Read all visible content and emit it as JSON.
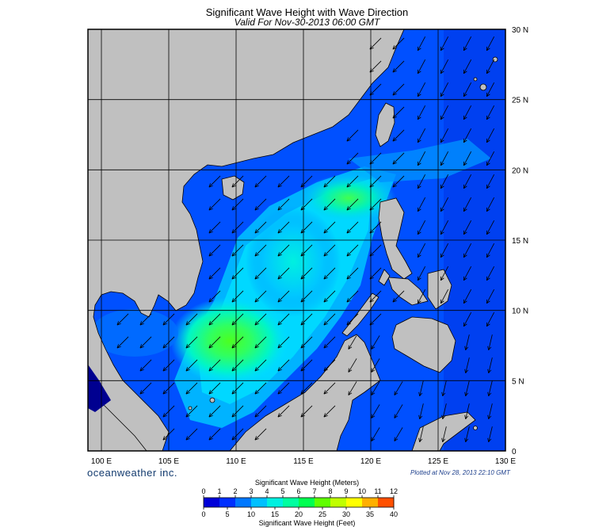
{
  "title": "Significant Wave Height with Wave Direction",
  "subtitle": "Valid For Nov-30-2013 06:00 GMT",
  "brand": "oceanweather inc.",
  "plotted": "Plotted at Nov 28, 2013 22:10 GMT",
  "lon_labels": [
    "100 E",
    "105 E",
    "110 E",
    "115 E",
    "120 E",
    "125 E",
    "130 E"
  ],
  "lat_labels": [
    "30 N",
    "25 N",
    "20 N",
    "15 N",
    "10 N",
    "5 N",
    "0"
  ],
  "colorbar": {
    "meters_title": "Significant Wave Height (Meters)",
    "feet_title": "Significant Wave Height (Feet)",
    "meters_ticks": [
      "0",
      "1",
      "2",
      "3",
      "4",
      "5",
      "6",
      "7",
      "8",
      "9",
      "10",
      "11",
      "12"
    ],
    "feet_ticks": [
      "0",
      "5",
      "10",
      "15",
      "20",
      "25",
      "30",
      "35",
      "40"
    ],
    "colors": [
      "#0000d8",
      "#0030ff",
      "#0078ff",
      "#00c0ff",
      "#00f0e0",
      "#00ffa0",
      "#00ff50",
      "#60ff00",
      "#c0ff00",
      "#ffff00",
      "#ffb000",
      "#ff5000"
    ]
  },
  "map": {
    "lon_range": [
      99,
      130
    ],
    "lat_range": [
      0,
      30
    ],
    "land_color": "#c0c0c0",
    "wave_direction_deg_toward": 225
  }
}
